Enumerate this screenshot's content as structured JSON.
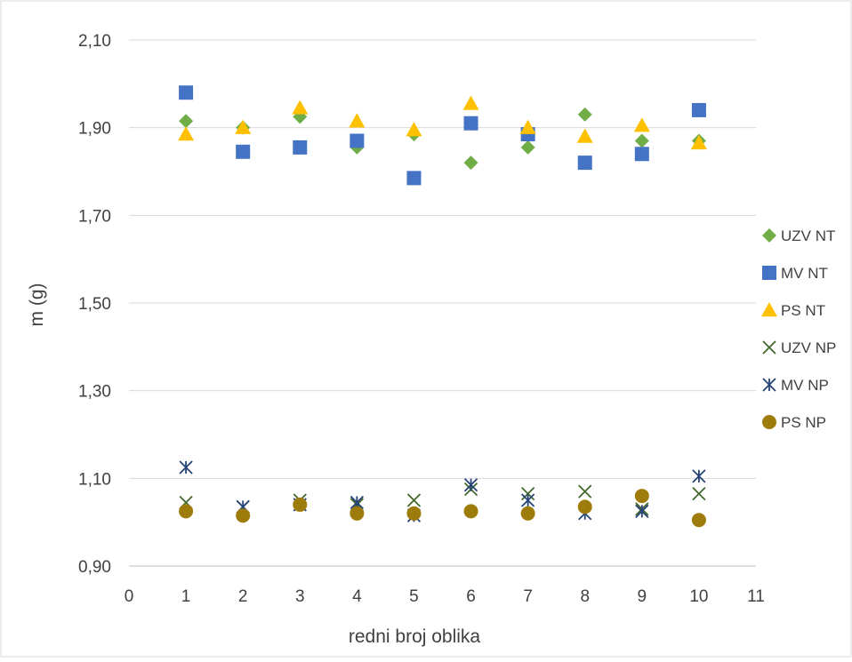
{
  "chart_data": {
    "type": "scatter",
    "title": "",
    "xlabel": "redni broj oblika",
    "ylabel": "m (g)",
    "xlim": [
      0,
      11
    ],
    "ylim": [
      0.9,
      2.1
    ],
    "x_ticks": [
      0,
      1,
      2,
      3,
      4,
      5,
      6,
      7,
      8,
      9,
      10,
      11
    ],
    "y_ticks": [
      0.9,
      1.1,
      1.3,
      1.5,
      1.7,
      1.9,
      2.1
    ],
    "y_tick_labels": [
      "0,90",
      "1,10",
      "1,30",
      "1,50",
      "1,70",
      "1,90",
      "2,10"
    ],
    "grid": "horizontal",
    "legend_position": "right",
    "series": [
      {
        "name": "UZV NT",
        "marker": "diamond",
        "color": "#70ad47",
        "x": [
          1,
          2,
          3,
          4,
          5,
          6,
          7,
          8,
          9,
          10
        ],
        "y": [
          1.915,
          1.9,
          1.925,
          1.855,
          1.885,
          1.82,
          1.855,
          1.93,
          1.87,
          1.87
        ]
      },
      {
        "name": "MV NT",
        "marker": "square",
        "color": "#4472c4",
        "x": [
          1,
          2,
          3,
          4,
          5,
          6,
          7,
          8,
          9,
          10
        ],
        "y": [
          1.98,
          1.845,
          1.855,
          1.87,
          1.785,
          1.91,
          1.885,
          1.82,
          1.84,
          1.94
        ]
      },
      {
        "name": "PS NT",
        "marker": "triangle",
        "color": "#ffc000",
        "x": [
          1,
          2,
          3,
          4,
          5,
          6,
          7,
          8,
          9,
          10
        ],
        "y": [
          1.885,
          1.9,
          1.945,
          1.915,
          1.895,
          1.955,
          1.9,
          1.88,
          1.905,
          1.865
        ]
      },
      {
        "name": "UZV NP",
        "marker": "x",
        "color": "#43682b",
        "x": [
          1,
          2,
          3,
          4,
          5,
          6,
          7,
          8,
          9,
          10
        ],
        "y": [
          1.045,
          1.035,
          1.05,
          1.04,
          1.05,
          1.075,
          1.065,
          1.07,
          1.03,
          1.065
        ]
      },
      {
        "name": "MV NP",
        "marker": "star",
        "color": "#264478",
        "x": [
          1,
          2,
          3,
          4,
          5,
          6,
          7,
          8,
          9,
          10
        ],
        "y": [
          1.125,
          1.035,
          1.04,
          1.045,
          1.015,
          1.085,
          1.05,
          1.02,
          1.025,
          1.105
        ]
      },
      {
        "name": "PS NP",
        "marker": "circle",
        "color": "#9e7c0c",
        "x": [
          1,
          2,
          3,
          4,
          5,
          6,
          7,
          8,
          9,
          10
        ],
        "y": [
          1.025,
          1.015,
          1.04,
          1.02,
          1.02,
          1.025,
          1.02,
          1.035,
          1.06,
          1.005
        ]
      }
    ]
  }
}
